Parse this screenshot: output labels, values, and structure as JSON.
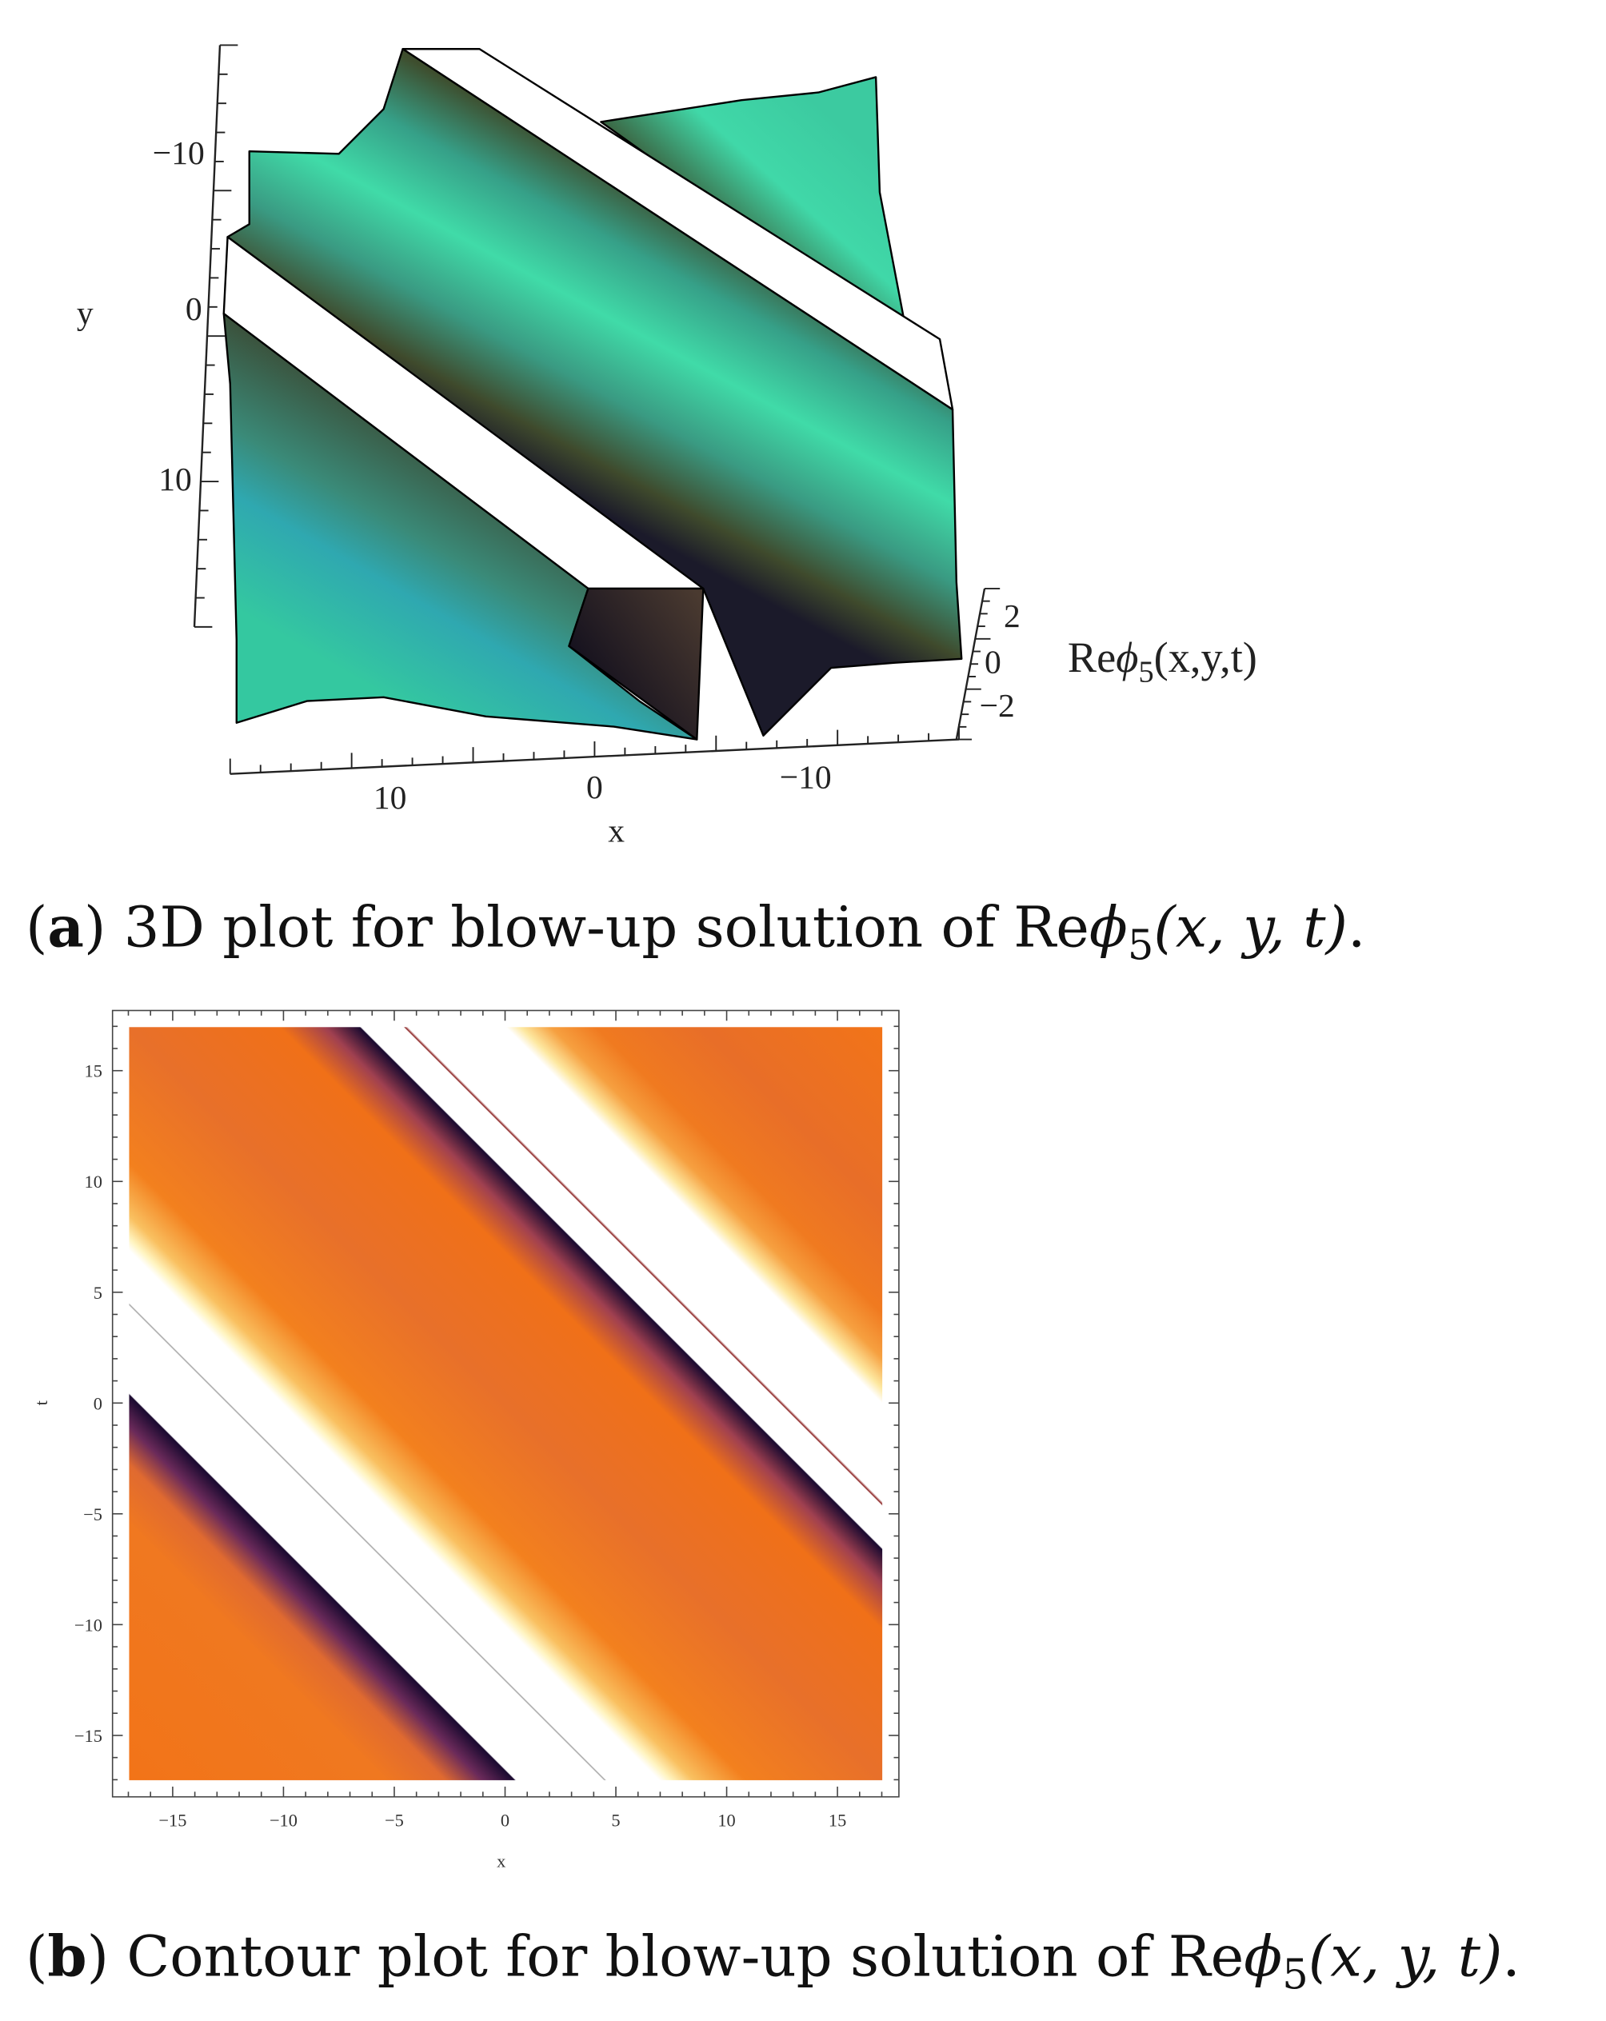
{
  "figure_a": {
    "axes": {
      "y_label": "y",
      "y_ticks": [
        "−10",
        "0",
        "10"
      ],
      "x_label": "x",
      "x_ticks": [
        "10",
        "0",
        "−10"
      ],
      "z_ticks": [
        "2",
        "0",
        "−2"
      ],
      "z_label": [
        "Re",
        "ϕ",
        "5",
        "(x,y,t)"
      ]
    },
    "caption": [
      "(",
      "a",
      ")",
      " 3D plot for blow-up solution of Re",
      "ϕ",
      "5",
      "(x, y, t)",
      "."
    ]
  },
  "figure_b": {
    "axes": {
      "x_label": "x",
      "x_ticks": [
        "−15",
        "−10",
        "−5",
        "0",
        "5",
        "10",
        "15"
      ],
      "y_label": "t",
      "y_ticks": [
        "15",
        "10",
        "5",
        "0",
        "−5",
        "−10",
        "−15"
      ]
    },
    "caption": [
      "(",
      "b",
      ")",
      " Contour plot for blow-up solution of Re",
      "ϕ",
      "5",
      "(x, y, t)",
      "."
    ]
  }
}
